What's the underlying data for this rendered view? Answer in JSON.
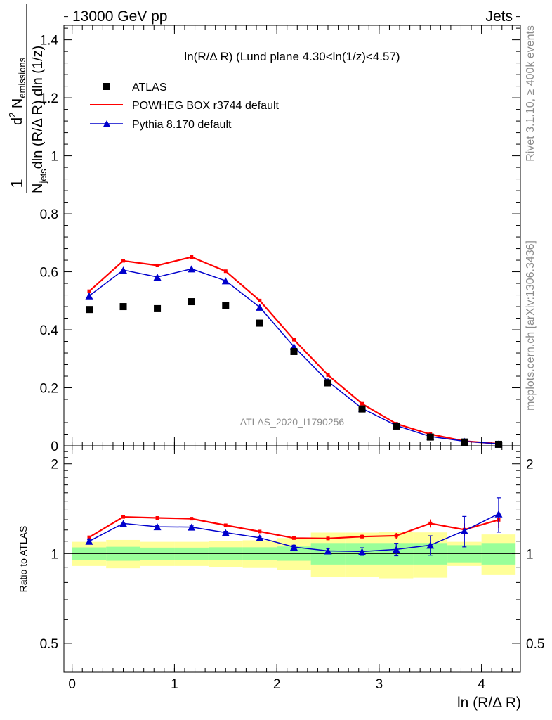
{
  "header": {
    "energy": "13000 GeV pp",
    "process": "Jets"
  },
  "side": {
    "rivet": "Rivet 3.1.10, ≥ 400k events",
    "mcplots": "mcplots.cern.ch [arXiv:1306.3436]"
  },
  "colors": {
    "powheg": "#ff0000",
    "pythia": "#0000cc",
    "band_inner": "#99ff99",
    "band_outer": "#ffff99"
  },
  "chart_data": [
    {
      "type": "scatter",
      "panel": "main",
      "title": "ln(R/Δ R) (Lund plane 4.30<ln(1/z)<4.57)",
      "watermark": "ATLAS_2020_I1790256",
      "ylabel": "1/N_jets d² N_emissions / dln(R/Δ R) dln(1/z)",
      "ylabel_parts": {
        "one": "1",
        "num_d": "d",
        "num_sup": "2",
        "num_N": " N",
        "num_sub": "emissions",
        "den_N": "N",
        "den_sub": "jets",
        "den_rest": "dln (R/Δ R) dln (1/z)"
      },
      "ylim": [
        0,
        1.45
      ],
      "yticks": [
        0,
        0.2,
        0.4,
        0.6,
        0.8,
        1,
        1.2,
        1.4
      ],
      "ytick_labels": [
        "0",
        "0.2",
        "0.4",
        "0.6",
        "0.8",
        "1",
        "1.2",
        "1.4"
      ],
      "xlim": [
        -0.08,
        4.38
      ],
      "x": [
        0.167,
        0.5,
        0.833,
        1.167,
        1.5,
        1.833,
        2.167,
        2.5,
        2.833,
        3.167,
        3.5,
        3.833,
        4.167
      ],
      "series": [
        {
          "name": "ATLAS",
          "style": "marker-square",
          "values": [
            0.47,
            0.48,
            0.473,
            0.497,
            0.484,
            0.423,
            0.325,
            0.217,
            0.127,
            0.068,
            0.03,
            0.013,
            0.005
          ]
        },
        {
          "name": "POWHEG BOX r3744 default",
          "style": "line",
          "values": [
            0.533,
            0.638,
            0.622,
            0.651,
            0.602,
            0.501,
            0.366,
            0.244,
            0.145,
            0.076,
            0.04,
            0.016,
            0.007
          ]
        },
        {
          "name": "Pythia 8.170 default",
          "style": "line-triangle",
          "values": [
            0.517,
            0.606,
            0.582,
            0.61,
            0.569,
            0.478,
            0.342,
            0.222,
            0.129,
            0.07,
            0.032,
            0.0155,
            0.0068
          ]
        }
      ]
    },
    {
      "type": "line",
      "panel": "ratio",
      "ylabel": "Ratio to ATLAS",
      "xlabel": "ln (R/Δ R)",
      "ylim": [
        0.4,
        2.3
      ],
      "yticks": [
        0.5,
        1,
        2
      ],
      "ytick_labels": [
        "0.5",
        "1",
        "2"
      ],
      "xticks": [
        0,
        1,
        2,
        3,
        4
      ],
      "xtick_labels": [
        "0",
        "1",
        "2",
        "3",
        "4"
      ],
      "x": [
        0.167,
        0.5,
        0.833,
        1.167,
        1.5,
        1.833,
        2.167,
        2.5,
        2.833,
        3.167,
        3.5,
        3.833,
        4.167
      ],
      "bin_edges": [
        0,
        0.333,
        0.667,
        1.0,
        1.333,
        1.667,
        2.0,
        2.333,
        2.667,
        3.0,
        3.333,
        3.667,
        4.0,
        4.333
      ],
      "band_inner": [
        [
          0.953,
          1.049
        ],
        [
          0.946,
          1.054
        ],
        [
          0.953,
          1.047
        ],
        [
          0.953,
          1.047
        ],
        [
          0.951,
          1.05
        ],
        [
          0.951,
          1.05
        ],
        [
          0.946,
          1.056
        ],
        [
          0.919,
          1.085
        ],
        [
          0.919,
          1.085
        ],
        [
          0.919,
          1.085
        ],
        [
          0.919,
          1.085
        ],
        [
          0.935,
          1.067
        ],
        [
          0.919,
          1.085
        ]
      ],
      "band_outer": [
        [
          0.909,
          1.095
        ],
        [
          0.893,
          1.111
        ],
        [
          0.909,
          1.095
        ],
        [
          0.909,
          1.095
        ],
        [
          0.903,
          1.101
        ],
        [
          0.895,
          1.108
        ],
        [
          0.88,
          1.127
        ],
        [
          0.833,
          1.176
        ],
        [
          0.833,
          1.176
        ],
        [
          0.826,
          1.183
        ],
        [
          0.83,
          1.178
        ],
        [
          0.909,
          1.095
        ],
        [
          0.847,
          1.159
        ]
      ],
      "series": [
        {
          "name": "POWHEG BOX r3744 default",
          "values": [
            1.134,
            1.328,
            1.318,
            1.31,
            1.245,
            1.186,
            1.127,
            1.124,
            1.14,
            1.148,
            1.263,
            1.203,
            1.298
          ],
          "errors": [
            0.012,
            0.012,
            0.012,
            0.012,
            0.012,
            0.012,
            0.012,
            0.015,
            0.02,
            0.025,
            0.04,
            0.06,
            0.08
          ]
        },
        {
          "name": "Pythia 8.170 default",
          "values": [
            1.1,
            1.263,
            1.231,
            1.227,
            1.176,
            1.13,
            1.052,
            1.021,
            1.016,
            1.033,
            1.067,
            1.193,
            1.36
          ],
          "errors": [
            0.012,
            0.012,
            0.012,
            0.012,
            0.012,
            0.012,
            0.015,
            0.02,
            0.03,
            0.05,
            0.08,
            0.14,
            0.18
          ]
        }
      ]
    }
  ]
}
